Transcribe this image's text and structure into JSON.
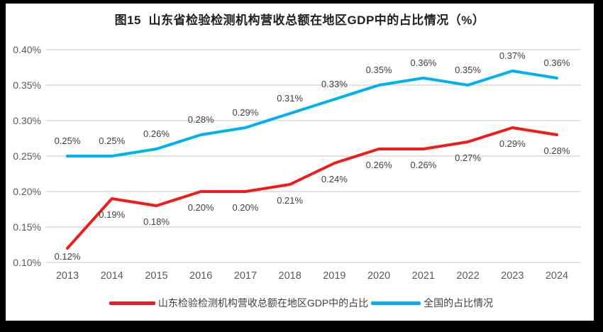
{
  "title": "图15  山东省检验检测机构营收总额在地区GDP中的占比情况（%）",
  "chart_data": {
    "type": "line",
    "categories": [
      "2013",
      "2014",
      "2015",
      "2016",
      "2017",
      "2018",
      "2019",
      "2020",
      "2021",
      "2022",
      "2023",
      "2024"
    ],
    "series": [
      {
        "key": "shandong",
        "name": "山东检验检测机构营收总额在地区GDP中的占比",
        "color": "#ee1c1c",
        "values": [
          0.12,
          0.19,
          0.18,
          0.2,
          0.2,
          0.21,
          0.24,
          0.26,
          0.26,
          0.27,
          0.29,
          0.28
        ],
        "labels": [
          "0.12%",
          "0.19%",
          "0.18%",
          "0.20%",
          "0.20%",
          "0.21%",
          "0.24%",
          "0.26%",
          "0.26%",
          "0.27%",
          "0.29%",
          "0.28%"
        ],
        "label_position": "below",
        "swatch_width": 65
      },
      {
        "key": "national",
        "name": "全国的占比情况",
        "color": "#00b0f0",
        "values": [
          0.25,
          0.25,
          0.26,
          0.28,
          0.29,
          0.31,
          0.33,
          0.35,
          0.36,
          0.35,
          0.37,
          0.36
        ],
        "labels": [
          "0.25%",
          "0.25%",
          "0.26%",
          "0.28%",
          "0.29%",
          "0.31%",
          "0.33%",
          "0.35%",
          "0.36%",
          "0.35%",
          "0.37%",
          "0.36%"
        ],
        "label_position": "above",
        "swatch_width": 70
      }
    ],
    "ylim": [
      0.1,
      0.4
    ],
    "ytick_step": 0.05,
    "ytick_labels": [
      "0.10%",
      "0.15%",
      "0.20%",
      "0.25%",
      "0.30%",
      "0.35%",
      "0.40%"
    ],
    "xlabel": "",
    "ylabel": "",
    "grid": "horizontal",
    "legend_position": "bottom"
  },
  "colors": {
    "frame": "#000000",
    "background": "#ffffff",
    "gridline": "#d9d9d9",
    "tick_text": "#595959",
    "data_label_text": "#404040",
    "title_text": "#1f1f1f"
  }
}
